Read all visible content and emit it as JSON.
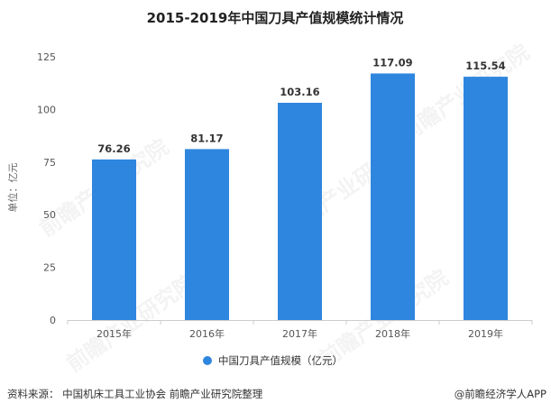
{
  "chart_data": {
    "type": "bar",
    "title": "2015-2019年中国刀具产值规模统计情况",
    "ylabel": "单位：亿元",
    "xlabel": "",
    "categories": [
      "2015年",
      "2016年",
      "2017年",
      "2018年",
      "2019年"
    ],
    "series": [
      {
        "name": "中国刀具产值规模（亿元）",
        "values": [
          76.26,
          81.17,
          103.16,
          117.09,
          115.54
        ],
        "color": "#2e86de"
      }
    ],
    "data_labels": [
      "76.26",
      "81.17",
      "103.16",
      "117.09",
      "115.54"
    ],
    "ylim": [
      0,
      125
    ],
    "yticks": [
      "0",
      "25",
      "50",
      "75",
      "100",
      "125"
    ],
    "grid": false,
    "legend_position": "bottom",
    "watermark": "前瞻产业研究院"
  },
  "footer": {
    "source": "资料来源： 中国机床工具工业协会 前瞻产业研究院整理",
    "brand": "@前瞻经济学人APP"
  }
}
